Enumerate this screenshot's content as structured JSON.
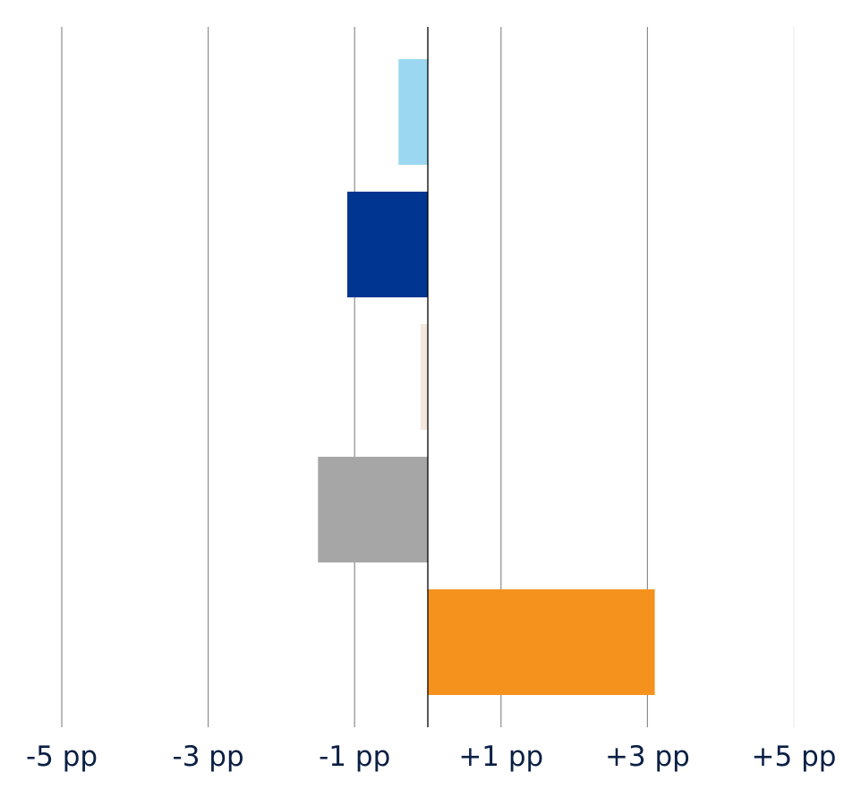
{
  "chart_data": {
    "type": "bar",
    "orientation": "horizontal",
    "title": "",
    "xlabel": "",
    "ylabel": "",
    "xlim": [
      -5,
      5
    ],
    "grid": true,
    "legend": "none",
    "x_ticks": [
      -5,
      -3,
      -1,
      1,
      3,
      5
    ],
    "x_tick_labels": [
      "-5 pp",
      "-3 pp",
      "-1 pp",
      "+1 pp",
      "+3 pp",
      "+5 pp"
    ],
    "bars": [
      {
        "value": -0.4,
        "color": "#9bd7f0"
      },
      {
        "value": -1.1,
        "color": "#003591"
      },
      {
        "value": -0.1,
        "color": "#f2e8dc"
      },
      {
        "value": -1.5,
        "color": "#a6a6a6"
      },
      {
        "value": 3.1,
        "color": "#f5921e"
      }
    ],
    "colors": {
      "grid": "#8c8c8c",
      "axis": "#000000",
      "tick_text": "#0a1f44"
    }
  }
}
